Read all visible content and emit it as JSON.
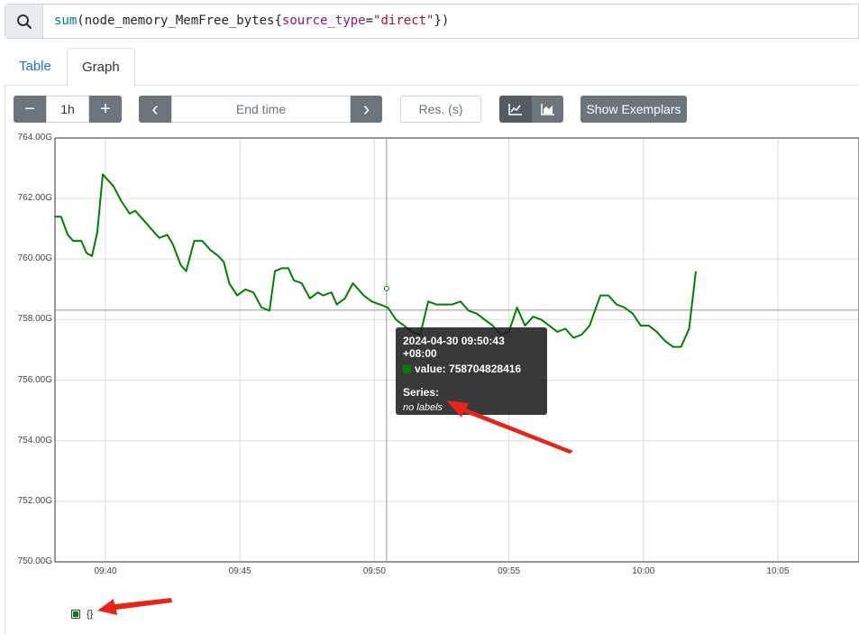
{
  "query": {
    "fn": "sum",
    "open_paren": "(",
    "metric": "node_memory_MemFree_bytes",
    "open_brace": "{",
    "label_name": "source_type",
    "equals": "=",
    "label_value": "\"direct\"",
    "close": "})"
  },
  "tabs": {
    "table": "Table",
    "graph": "Graph"
  },
  "controls": {
    "minus": "−",
    "range": "1h",
    "plus": "+",
    "prev": "‹",
    "end_time_placeholder": "End time",
    "next": "›",
    "resolution_placeholder": "Res. (s)",
    "show_exemplars": "Show Exemplars"
  },
  "chart_data": {
    "type": "line",
    "y_ticks": [
      "764.00G",
      "762.00G",
      "760.00G",
      "758.00G",
      "756.00G",
      "754.00G",
      "752.00G",
      "750.00G"
    ],
    "x_ticks": [
      "09:40",
      "09:45",
      "09:50",
      "09:55",
      "10:00",
      "10:05"
    ],
    "ylim": [
      750.0,
      764.0
    ],
    "x_minutes": [
      -1.9,
      7.9
    ],
    "grid": true,
    "series": [
      {
        "name": "{}",
        "color": "#008000",
        "values": [
          [
            -1.9,
            761.4
          ],
          [
            -1.65,
            761.4
          ],
          [
            -1.4,
            760.8
          ],
          [
            -1.2,
            760.6
          ],
          [
            -0.9,
            760.6
          ],
          [
            -0.7,
            760.2
          ],
          [
            -0.5,
            760.1
          ],
          [
            -0.3,
            760.9
          ],
          [
            -0.1,
            762.8
          ],
          [
            0.3,
            762.4
          ],
          [
            0.6,
            761.9
          ],
          [
            0.9,
            761.5
          ],
          [
            1.1,
            761.6
          ],
          [
            1.4,
            761.3
          ],
          [
            1.7,
            761.0
          ],
          [
            2.0,
            760.7
          ],
          [
            2.3,
            760.8
          ],
          [
            2.5,
            760.5
          ],
          [
            2.8,
            759.8
          ],
          [
            3.0,
            759.6
          ],
          [
            3.3,
            760.6
          ],
          [
            3.6,
            760.6
          ],
          [
            3.9,
            760.3
          ],
          [
            4.2,
            760.1
          ],
          [
            4.4,
            759.9
          ],
          [
            4.6,
            759.2
          ],
          [
            4.9,
            758.8
          ],
          [
            5.2,
            759.0
          ],
          [
            5.5,
            758.9
          ],
          [
            5.8,
            758.4
          ],
          [
            6.1,
            758.3
          ],
          [
            6.3,
            759.6
          ],
          [
            6.55,
            759.7
          ],
          [
            6.8,
            759.7
          ],
          [
            7.0,
            759.3
          ],
          [
            7.3,
            759.2
          ],
          [
            7.6,
            758.7
          ],
          [
            7.9,
            758.9
          ],
          [
            8.1,
            758.8
          ],
          [
            8.4,
            758.9
          ],
          [
            8.6,
            758.5
          ],
          [
            8.9,
            758.7
          ],
          [
            9.2,
            759.2
          ],
          [
            9.6,
            758.8
          ],
          [
            9.9,
            758.6
          ],
          [
            10.2,
            758.5
          ],
          [
            10.5,
            758.4
          ],
          [
            10.8,
            758.0
          ],
          [
            11.1,
            757.8
          ],
          [
            11.4,
            757.6
          ],
          [
            11.7,
            757.5
          ],
          [
            12.0,
            758.6
          ],
          [
            12.3,
            758.5
          ],
          [
            12.6,
            758.5
          ],
          [
            12.9,
            758.5
          ],
          [
            13.2,
            758.6
          ],
          [
            13.5,
            758.3
          ],
          [
            13.8,
            758.2
          ],
          [
            14.1,
            758.0
          ],
          [
            14.4,
            757.8
          ],
          [
            14.7,
            757.5
          ],
          [
            15.0,
            757.6
          ],
          [
            15.3,
            758.4
          ],
          [
            15.6,
            757.8
          ],
          [
            15.9,
            758.1
          ],
          [
            16.2,
            758.0
          ],
          [
            16.5,
            757.8
          ],
          [
            16.8,
            757.6
          ],
          [
            17.1,
            757.7
          ],
          [
            17.4,
            757.4
          ],
          [
            17.7,
            757.5
          ],
          [
            18.0,
            757.8
          ],
          [
            18.4,
            758.8
          ],
          [
            18.7,
            758.8
          ],
          [
            19.0,
            758.5
          ],
          [
            19.3,
            758.4
          ],
          [
            19.6,
            758.2
          ],
          [
            19.9,
            757.8
          ],
          [
            20.2,
            757.8
          ],
          [
            20.5,
            757.6
          ],
          [
            20.8,
            757.3
          ],
          [
            21.1,
            757.1
          ],
          [
            21.4,
            757.1
          ],
          [
            21.7,
            757.7
          ],
          [
            21.95,
            759.6
          ]
        ]
      }
    ],
    "hover": {
      "timestamp": "2024-04-30 09:50:43 +08:00",
      "value_prefix": "value: ",
      "value": "758704828416",
      "series_label": "Series:",
      "series_value": "no labels",
      "x_minute": 10.72,
      "y": 758.7
    }
  },
  "legend": {
    "label": "{}"
  },
  "colors": {
    "series": "#008000",
    "accent": "#1a73c8",
    "button": "#6c757d",
    "arrow": "#e8231a"
  }
}
